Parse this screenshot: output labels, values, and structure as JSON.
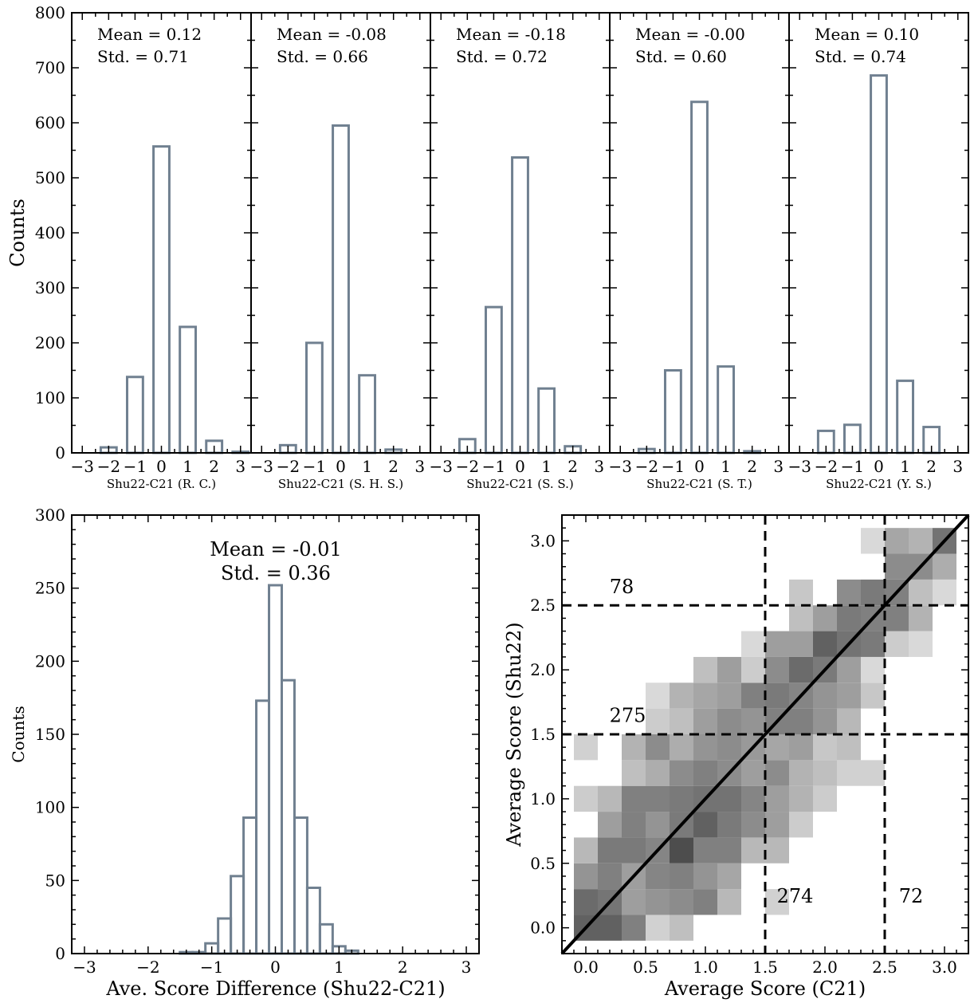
{
  "chart_data": [
    {
      "type": "bar",
      "panel": "hist-rc",
      "categories": [
        -3,
        -2,
        -1,
        0,
        1,
        2,
        3
      ],
      "values": [
        0,
        10,
        138,
        557,
        229,
        22,
        2
      ],
      "xlabel": "Shu22-C21 (R. C.)",
      "ylabel": "Counts",
      "ylim": [
        0,
        800
      ],
      "xlim": [
        -3.4,
        3.4
      ],
      "mean_text": "Mean = 0.12",
      "std_text": "Std.   = 0.71"
    },
    {
      "type": "bar",
      "panel": "hist-shs",
      "categories": [
        -3,
        -2,
        -1,
        0,
        1,
        2,
        3
      ],
      "values": [
        0,
        14,
        200,
        595,
        141,
        6,
        0
      ],
      "xlabel": "Shu22-C21 (S. H. S.)",
      "ylabel": "",
      "ylim": [
        0,
        800
      ],
      "xlim": [
        -3.4,
        3.4
      ],
      "mean_text": "Mean = -0.08",
      "std_text": "Std.   = 0.66"
    },
    {
      "type": "bar",
      "panel": "hist-ss",
      "categories": [
        -3,
        -2,
        -1,
        0,
        1,
        2,
        3
      ],
      "values": [
        0,
        25,
        265,
        537,
        117,
        12,
        0
      ],
      "xlabel": "Shu22-C21 (S. S.)",
      "ylabel": "",
      "ylim": [
        0,
        800
      ],
      "xlim": [
        -3.4,
        3.4
      ],
      "mean_text": "Mean = -0.18",
      "std_text": "Std.   = 0.72"
    },
    {
      "type": "bar",
      "panel": "hist-st",
      "categories": [
        -3,
        -2,
        -1,
        0,
        1,
        2,
        3
      ],
      "values": [
        0,
        7,
        150,
        638,
        157,
        3,
        0
      ],
      "xlabel": "Shu22-C21 (S. T.)",
      "ylabel": "",
      "ylim": [
        0,
        800
      ],
      "xlim": [
        -3.4,
        3.4
      ],
      "mean_text": "Mean = -0.00",
      "std_text": "Std.   = 0.60"
    },
    {
      "type": "bar",
      "panel": "hist-ys",
      "categories": [
        -3,
        -2,
        -1,
        0,
        1,
        2,
        3
      ],
      "values": [
        0,
        40,
        51,
        686,
        131,
        47,
        0
      ],
      "xlabel": "Shu22-C21 (Y. S.)",
      "ylabel": "",
      "ylim": [
        0,
        800
      ],
      "xlim": [
        -3.4,
        3.4
      ],
      "mean_text": "Mean = 0.10",
      "std_text": "Std.   = 0.74"
    },
    {
      "type": "bar",
      "panel": "hist-avg",
      "bin_width": 0.2,
      "bin_centers": [
        -1.4,
        -1.2,
        -1.0,
        -0.8,
        -0.6,
        -0.4,
        -0.2,
        0.0,
        0.2,
        0.4,
        0.6,
        0.8,
        1.0,
        1.2
      ],
      "values": [
        1,
        1,
        7,
        24,
        53,
        93,
        173,
        252,
        187,
        93,
        45,
        20,
        5,
        2
      ],
      "xlabel": "Ave. Score Difference (Shu22-C21)",
      "ylabel": "Counts",
      "ylim": [
        0,
        300
      ],
      "xlim": [
        -3.2,
        3.2
      ],
      "xticks": [
        -3,
        -2,
        -1,
        0,
        1,
        2,
        3
      ],
      "yticks": [
        0,
        50,
        100,
        150,
        200,
        250,
        300
      ],
      "mean_text": "Mean = -0.01",
      "std_text": "Std.   = 0.36"
    },
    {
      "type": "heatmap",
      "panel": "heatmap",
      "xlabel": "Average Score (C21)",
      "ylabel": "Average Score (Shu22)",
      "xlim": [
        -0.2,
        3.2
      ],
      "ylim": [
        -0.2,
        3.2
      ],
      "xticks": [
        "0.0",
        "0.5",
        "1.0",
        "1.5",
        "2.0",
        "2.5",
        "3.0"
      ],
      "yticks": [
        "0.0",
        "0.5",
        "1.0",
        "1.5",
        "2.0",
        "2.5",
        "3.0"
      ],
      "cell_size": 0.2,
      "cells": [
        [
          0.0,
          0.0,
          0.62
        ],
        [
          0.2,
          0.0,
          0.62
        ],
        [
          0.4,
          0.0,
          0.5
        ],
        [
          0.6,
          0.0,
          0.18
        ],
        [
          0.8,
          0.0,
          0.25
        ],
        [
          0.0,
          0.2,
          0.58
        ],
        [
          0.2,
          0.2,
          0.54
        ],
        [
          0.4,
          0.2,
          0.38
        ],
        [
          0.6,
          0.2,
          0.42
        ],
        [
          0.8,
          0.2,
          0.45
        ],
        [
          1.0,
          0.2,
          0.5
        ],
        [
          1.2,
          0.2,
          0.28
        ],
        [
          1.6,
          0.2,
          0.18
        ],
        [
          0.0,
          0.4,
          0.42
        ],
        [
          0.2,
          0.4,
          0.5
        ],
        [
          0.4,
          0.4,
          0.38
        ],
        [
          0.6,
          0.4,
          0.48
        ],
        [
          0.8,
          0.4,
          0.5
        ],
        [
          1.0,
          0.4,
          0.42
        ],
        [
          1.2,
          0.4,
          0.35
        ],
        [
          0.0,
          0.6,
          0.28
        ],
        [
          0.2,
          0.6,
          0.52
        ],
        [
          0.4,
          0.6,
          0.52
        ],
        [
          0.6,
          0.6,
          0.48
        ],
        [
          0.8,
          0.6,
          0.7
        ],
        [
          1.0,
          0.6,
          0.5
        ],
        [
          1.2,
          0.6,
          0.5
        ],
        [
          1.4,
          0.6,
          0.28
        ],
        [
          1.6,
          0.6,
          0.28
        ],
        [
          0.2,
          0.8,
          0.38
        ],
        [
          0.4,
          0.8,
          0.5
        ],
        [
          0.6,
          0.8,
          0.42
        ],
        [
          0.8,
          0.8,
          0.52
        ],
        [
          1.0,
          0.8,
          0.62
        ],
        [
          1.2,
          0.8,
          0.52
        ],
        [
          1.4,
          0.8,
          0.45
        ],
        [
          1.6,
          0.8,
          0.38
        ],
        [
          1.8,
          0.8,
          0.2
        ],
        [
          0.0,
          1.0,
          0.2
        ],
        [
          0.2,
          1.0,
          0.28
        ],
        [
          0.4,
          1.0,
          0.5
        ],
        [
          0.6,
          1.0,
          0.5
        ],
        [
          0.8,
          1.0,
          0.52
        ],
        [
          1.0,
          1.0,
          0.55
        ],
        [
          1.2,
          1.0,
          0.55
        ],
        [
          1.4,
          1.0,
          0.48
        ],
        [
          1.6,
          1.0,
          0.38
        ],
        [
          1.8,
          1.0,
          0.3
        ],
        [
          2.0,
          1.0,
          0.2
        ],
        [
          0.4,
          1.2,
          0.25
        ],
        [
          0.6,
          1.2,
          0.32
        ],
        [
          0.8,
          1.2,
          0.45
        ],
        [
          1.0,
          1.2,
          0.5
        ],
        [
          1.2,
          1.2,
          0.45
        ],
        [
          1.4,
          1.2,
          0.38
        ],
        [
          1.6,
          1.2,
          0.45
        ],
        [
          1.8,
          1.2,
          0.3
        ],
        [
          2.0,
          1.2,
          0.25
        ],
        [
          2.2,
          1.2,
          0.18
        ],
        [
          2.4,
          1.2,
          0.18
        ],
        [
          0.0,
          1.4,
          0.18
        ],
        [
          0.4,
          1.4,
          0.3
        ],
        [
          0.6,
          1.4,
          0.45
        ],
        [
          0.8,
          1.4,
          0.32
        ],
        [
          1.0,
          1.4,
          0.42
        ],
        [
          1.2,
          1.4,
          0.45
        ],
        [
          1.4,
          1.4,
          0.4
        ],
        [
          1.6,
          1.4,
          0.35
        ],
        [
          1.8,
          1.4,
          0.38
        ],
        [
          2.0,
          1.4,
          0.22
        ],
        [
          2.2,
          1.4,
          0.25
        ],
        [
          0.6,
          1.6,
          0.2
        ],
        [
          0.8,
          1.6,
          0.25
        ],
        [
          1.0,
          1.6,
          0.38
        ],
        [
          1.2,
          1.6,
          0.45
        ],
        [
          1.4,
          1.6,
          0.42
        ],
        [
          1.6,
          1.6,
          0.5
        ],
        [
          1.8,
          1.6,
          0.5
        ],
        [
          2.0,
          1.6,
          0.42
        ],
        [
          2.2,
          1.6,
          0.28
        ],
        [
          0.6,
          1.8,
          0.15
        ],
        [
          0.8,
          1.8,
          0.3
        ],
        [
          1.0,
          1.8,
          0.35
        ],
        [
          1.2,
          1.8,
          0.38
        ],
        [
          1.4,
          1.8,
          0.5
        ],
        [
          1.6,
          1.8,
          0.52
        ],
        [
          1.8,
          1.8,
          0.48
        ],
        [
          2.0,
          1.8,
          0.42
        ],
        [
          2.2,
          1.8,
          0.38
        ],
        [
          2.4,
          1.8,
          0.22
        ],
        [
          1.0,
          2.0,
          0.25
        ],
        [
          1.2,
          2.0,
          0.38
        ],
        [
          1.4,
          2.0,
          0.2
        ],
        [
          1.6,
          2.0,
          0.45
        ],
        [
          1.8,
          2.0,
          0.58
        ],
        [
          2.0,
          2.0,
          0.52
        ],
        [
          2.2,
          2.0,
          0.38
        ],
        [
          2.4,
          2.0,
          0.15
        ],
        [
          1.4,
          2.2,
          0.15
        ],
        [
          1.6,
          2.2,
          0.38
        ],
        [
          1.8,
          2.2,
          0.38
        ],
        [
          2.0,
          2.2,
          0.62
        ],
        [
          2.2,
          2.2,
          0.55
        ],
        [
          2.4,
          2.2,
          0.52
        ],
        [
          2.6,
          2.2,
          0.2
        ],
        [
          2.8,
          2.2,
          0.15
        ],
        [
          1.8,
          2.4,
          0.25
        ],
        [
          2.0,
          2.4,
          0.38
        ],
        [
          2.2,
          2.4,
          0.52
        ],
        [
          2.4,
          2.4,
          0.5
        ],
        [
          2.6,
          2.4,
          0.5
        ],
        [
          2.8,
          2.4,
          0.3
        ],
        [
          1.8,
          2.6,
          0.22
        ],
        [
          2.2,
          2.6,
          0.45
        ],
        [
          2.4,
          2.6,
          0.52
        ],
        [
          2.6,
          2.6,
          0.5
        ],
        [
          2.8,
          2.6,
          0.25
        ],
        [
          3.0,
          2.6,
          0.15
        ],
        [
          2.6,
          2.8,
          0.45
        ],
        [
          2.8,
          2.8,
          0.45
        ],
        [
          3.0,
          2.8,
          0.32
        ],
        [
          2.4,
          3.0,
          0.15
        ],
        [
          2.6,
          3.0,
          0.35
        ],
        [
          2.8,
          3.0,
          0.3
        ],
        [
          3.0,
          3.0,
          0.55
        ]
      ],
      "diagonal": [
        [
          -0.2,
          -0.2
        ],
        [
          3.2,
          3.2
        ]
      ],
      "vlines": [
        1.5,
        2.5
      ],
      "hlines": [
        1.5,
        2.5
      ],
      "annotations": [
        {
          "text": "78",
          "x": 0.3,
          "y": 2.65
        },
        {
          "text": "275",
          "x": 0.35,
          "y": 1.65
        },
        {
          "text": "274",
          "x": 1.75,
          "y": 0.25
        },
        {
          "text": "72",
          "x": 2.72,
          "y": 0.25
        }
      ]
    }
  ]
}
